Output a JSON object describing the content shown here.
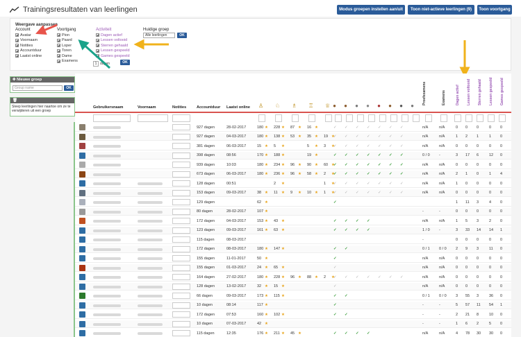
{
  "title": "Trainingsresultaten van leerlingen",
  "buttons": {
    "groups": "Modus groepen instellen aan/uit",
    "inactive": "Toon niet-actieve leerlingen (9)",
    "progress": "Toon voortgang"
  },
  "panel": {
    "title": "Weergave aanpassen",
    "account": {
      "label": "Account",
      "items": [
        "Avatar",
        "Voornaam",
        "Notities",
        "Accountduur",
        "Laatst online"
      ]
    },
    "progress": {
      "label": "Voortgang",
      "items": [
        "Pion",
        "Paard",
        "Loper",
        "Toren",
        "Dame",
        "Examens"
      ]
    },
    "activity": {
      "label": "Activiteit",
      "items": [
        "Dagen actief",
        "Lessen voltooid",
        "Sterren gehaald",
        "Lessen gespeeld",
        "Games gespeeld"
      ]
    },
    "group": {
      "label": "Huidige groep",
      "value": "Alle leerlingen",
      "ok": "OK"
    },
    "ok2": "OK",
    "count": "1",
    "count_label": "dagen"
  },
  "side": {
    "new_group": "Nieuwe groep",
    "placeholder": "Group name",
    "ok": "OK",
    "drop_title": "Leerlingen",
    "drop_note": "Sleep leerlingen hier naartoe om ze te verwijderen uit een groep"
  },
  "headers": {
    "username": "Gebruikersnaam",
    "firstname": "Voornaam",
    "notes": "Notities",
    "duration": "Accountduur",
    "last": "Laatst online",
    "proef": "Proefexamens",
    "exams": "Examens",
    "days": "Dagen actief",
    "lessons": "Lessen voltooid",
    "stars": "Sterren gehaald",
    "lplayed": "Lessen gespeeld",
    "games": "Games gespeeld"
  },
  "rows": [
    {
      "d": "927 dagen",
      "l": "28-02-2017",
      "p": [
        "180",
        "228",
        "87",
        "16"
      ],
      "c": "ggggggg",
      "pe": "n/A",
      "ex": "n/A",
      "a": [
        "0",
        "0",
        "0",
        "0",
        "0"
      ]
    },
    {
      "d": "927 dagen",
      "l": "04-03-2017",
      "p": [
        "180",
        "138",
        "53",
        "35",
        "19"
      ],
      "c": "ggggggg",
      "pe": "n/A",
      "ex": "n/A",
      "a": [
        "1",
        "2",
        "1",
        "1",
        "0"
      ]
    },
    {
      "d": "381 dagen",
      "l": "06-03-2017",
      "p": [
        "15",
        "5",
        "",
        "5",
        "3"
      ],
      "c": "ggggggg",
      "pe": "n/A",
      "ex": "n/A",
      "a": [
        "0",
        "0",
        "0",
        "0",
        "0"
      ]
    },
    {
      "d": "398 dagen",
      "l": "08:56",
      "p": [
        "170",
        "188",
        "",
        "19"
      ],
      "c": "GGGGGGG",
      "pe": "0 / 0",
      "ex": "-",
      "a": [
        "3",
        "17",
        "6",
        "12",
        "0"
      ]
    },
    {
      "d": "939 dagen",
      "l": "10:03",
      "p": [
        "180",
        "234",
        "96",
        "90",
        "60"
      ],
      "c": "GGGGGGG",
      "pe": "n/A",
      "ex": "n/A",
      "a": [
        "0",
        "0",
        "0",
        "0",
        "0"
      ]
    },
    {
      "d": "673 dagen",
      "l": "06-03-2017",
      "p": [
        "180",
        "236",
        "96",
        "58",
        "2"
      ],
      "c": "GGGGGGG",
      "pe": "n/A",
      "ex": "n/A",
      "a": [
        "2",
        "1",
        "0",
        "1",
        "4"
      ]
    },
    {
      "d": "128 dagen",
      "l": "00:51",
      "p": [
        "",
        "2",
        "",
        "",
        "1"
      ],
      "c": "ggggggg",
      "pe": "n/A",
      "ex": "n/A",
      "a": [
        "1",
        "0",
        "0",
        "0",
        "0"
      ]
    },
    {
      "d": "153 dagen",
      "l": "09-03-2017",
      "p": [
        "38",
        "11",
        "9",
        "10",
        "1"
      ],
      "c": "ggggggg",
      "pe": "n/A",
      "ex": "n/A",
      "a": [
        "0",
        "0",
        "0",
        "0",
        "0"
      ]
    },
    {
      "d": "129 dagen",
      "l": "",
      "p": [
        "62"
      ],
      "c": "G",
      "pe": "",
      "ex": "",
      "a": [
        "1",
        "11",
        "3",
        "4",
        "0"
      ]
    },
    {
      "d": "80 dagen",
      "l": "28-02-2017",
      "p": [
        "107"
      ],
      "c": "",
      "pe": "-",
      "ex": "-",
      "a": [
        "0",
        "0",
        "0",
        "0",
        "0"
      ]
    },
    {
      "d": "172 dagen",
      "l": "04-03-2017",
      "p": [
        "153",
        "43"
      ],
      "c": "GGGG",
      "pe": "n/A",
      "ex": "n/A",
      "a": [
        "1",
        "5",
        "3",
        "2",
        "0"
      ]
    },
    {
      "d": "123 dagen",
      "l": "09-03-2017",
      "p": [
        "161",
        "63"
      ],
      "c": "GGGG",
      "pe": "1 / 0",
      "ex": "-",
      "a": [
        "3",
        "33",
        "14",
        "14",
        "1"
      ]
    },
    {
      "d": "115 dagen",
      "l": "08-03-2017",
      "p": [
        ""
      ],
      "c": "",
      "pe": "-",
      "ex": "",
      "a": [
        "0",
        "0",
        "0",
        "0",
        "0"
      ]
    },
    {
      "d": "172 dagen",
      "l": "08-03-2017",
      "p": [
        "180",
        "147"
      ],
      "c": "GG",
      "pe": "0 / 1",
      "ex": "0 / 0",
      "a": [
        "2",
        "9",
        "3",
        "11",
        "0"
      ]
    },
    {
      "d": "155 dagen",
      "l": "11-01-2017",
      "p": [
        "50"
      ],
      "c": "G",
      "pe": "n/A",
      "ex": "n/A",
      "a": [
        "0",
        "0",
        "0",
        "0",
        "0"
      ]
    },
    {
      "d": "155 dagen",
      "l": "01-03-2017",
      "p": [
        "24",
        "65"
      ],
      "c": "g",
      "pe": "n/A",
      "ex": "n/A",
      "a": [
        "0",
        "0",
        "0",
        "0",
        "0"
      ]
    },
    {
      "d": "164 dagen",
      "l": "27-02-2017",
      "p": [
        "180",
        "228",
        "96",
        "88",
        "2"
      ],
      "c": "ggggggg",
      "pe": "n/A",
      "ex": "n/A",
      "a": [
        "0",
        "0",
        "0",
        "0",
        "0"
      ]
    },
    {
      "d": "128 dagen",
      "l": "13-02-2017",
      "p": [
        "32",
        "15"
      ],
      "c": "g",
      "pe": "n/A",
      "ex": "n/A",
      "a": [
        "0",
        "0",
        "0",
        "0",
        "0"
      ]
    },
    {
      "d": "66 dagen",
      "l": "09-03-2017",
      "p": [
        "173",
        "115"
      ],
      "c": "GG",
      "pe": "0 / 1",
      "ex": "0 / 0",
      "a": [
        "3",
        "55",
        "3",
        "36",
        "0"
      ]
    },
    {
      "d": "10 dagen",
      "l": "08:14",
      "p": [
        "117"
      ],
      "c": "G",
      "pe": "-",
      "ex": "-",
      "a": [
        "5",
        "57",
        "11",
        "54",
        "1"
      ]
    },
    {
      "d": "172 dagen",
      "l": "07:53",
      "p": [
        "160",
        "102"
      ],
      "c": "GG",
      "pe": "-",
      "ex": "-",
      "a": [
        "2",
        "21",
        "8",
        "10",
        "0"
      ]
    },
    {
      "d": "10 dagen",
      "l": "07-03-2017",
      "p": [
        "42"
      ],
      "c": "",
      "pe": "-",
      "ex": "-",
      "a": [
        "1",
        "6",
        "2",
        "5",
        "0"
      ]
    },
    {
      "d": "115 dagen",
      "l": "12:35",
      "p": [
        "176",
        "211",
        "45"
      ],
      "c": "GGGG",
      "pe": "n/A",
      "ex": "n/A",
      "a": [
        "4",
        "78",
        "30",
        "30",
        "0"
      ]
    }
  ],
  "avatar_colors": [
    "#8a7f6e",
    "#6b5a3e",
    "#a04040",
    "#2e6da4",
    "#aaa",
    "#8b4513",
    "#2e6da4",
    "#607080",
    "#aab0bb",
    "#999",
    "#c05020",
    "#2e6da4",
    "#2e6da4",
    "#2e6da4",
    "#2e6da4",
    "#aa3311",
    "#2e6da4",
    "#2e6da4",
    "#2c7a2c",
    "#2e6da4",
    "#2e6da4",
    "#2e6da4",
    "#2e6da4"
  ]
}
